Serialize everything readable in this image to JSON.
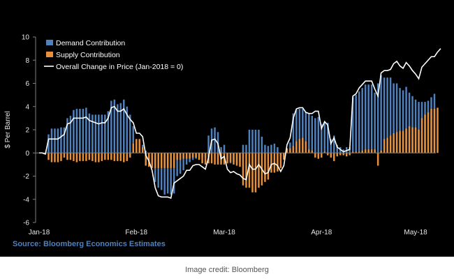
{
  "chart_data": {
    "type": "bar",
    "title": "",
    "ylabel": "$ Per Barrel",
    "xlabel": "",
    "ylim": [
      -6,
      10
    ],
    "yticks": [
      -6,
      -4,
      -2,
      0,
      2,
      4,
      6,
      8,
      10
    ],
    "x_tick_labels": [
      {
        "label": "Jan-18",
        "index": 0
      },
      {
        "label": "Feb-18",
        "index": 31
      },
      {
        "label": "Mar-18",
        "index": 59
      },
      {
        "label": "Apr-18",
        "index": 90
      },
      {
        "label": "May-18",
        "index": 120
      }
    ],
    "grid": false,
    "legend_position": "top-left",
    "legend": {
      "demand": "Demand Contribution",
      "supply": "Supply Contribution",
      "overall": "Overall Change in Price (Jan-2018 = 0)"
    },
    "series": [
      {
        "name": "Demand Contribution",
        "kind": "bar",
        "color": "#4f81bd",
        "values": [
          0,
          0,
          0,
          1.6,
          2.1,
          2.1,
          2.1,
          2.2,
          2.2,
          3.0,
          3.2,
          3.7,
          3.8,
          3.8,
          3.8,
          3.9,
          3.4,
          3.3,
          3.3,
          3.3,
          3.3,
          3.3,
          3.6,
          4.5,
          4.6,
          4.2,
          4.3,
          4.6,
          4.0,
          3.3,
          2.3,
          1.0,
          0.6,
          0.7,
          0.2,
          -1.0,
          -1.2,
          -2.5,
          -3.0,
          -3.2,
          -3.6,
          -3.5,
          -3.6,
          -3.5,
          -2.0,
          -1.8,
          -1.5,
          -1.0,
          -0.8,
          -0.6,
          -0.5,
          -0.5,
          -0.4,
          -0.4,
          1.5,
          2.1,
          2.2,
          1.8,
          0.5,
          0.7,
          -0.5,
          -0.9,
          -0.8,
          -0.9,
          -0.7,
          0.7,
          0.7,
          2.0,
          2.0,
          2.0,
          2.0,
          1.4,
          0.7,
          0.6,
          0.7,
          0.8,
          0.5,
          -0.3,
          -0.5,
          0.3,
          0.9,
          3.4,
          3.7,
          3.8,
          3.8,
          3.5,
          3.4,
          3.2,
          3.0,
          3.1,
          2.5,
          2.6,
          2.6,
          1.2,
          1.5,
          0.7,
          0.5,
          0.3,
          0.5,
          0.5,
          4.8,
          5.0,
          5.3,
          5.6,
          5.9,
          5.9,
          5.9,
          5.2,
          6.0,
          6.7,
          6.5,
          6.5,
          6.5,
          6.0,
          6.0,
          5.6,
          5.4,
          5.7,
          5.2,
          4.9,
          4.6,
          4.4,
          4.4,
          4.4,
          4.5,
          4.8,
          5.1
        ]
      },
      {
        "name": "Supply Contribution",
        "kind": "bar",
        "color": "#e8913a",
        "values": [
          0,
          0,
          0,
          -0.6,
          -0.8,
          -0.8,
          -0.8,
          -0.7,
          -0.4,
          -0.6,
          -0.6,
          -0.7,
          -0.8,
          -0.7,
          -0.7,
          -0.7,
          -0.6,
          -0.7,
          -0.8,
          -0.8,
          -0.7,
          -0.6,
          -0.6,
          -0.6,
          -0.7,
          -0.7,
          -0.7,
          -0.8,
          -0.7,
          -0.4,
          0.8,
          1.2,
          1.2,
          0.5,
          -1.1,
          -1.2,
          -1.3,
          -1.3,
          -1.3,
          -1.3,
          -1.3,
          -1.3,
          -1.3,
          -1.3,
          -0.6,
          -0.6,
          -0.5,
          -0.5,
          -0.5,
          -0.4,
          -0.4,
          -0.6,
          -0.9,
          -1.0,
          -0.9,
          -0.9,
          -1.0,
          -1.0,
          -1.0,
          -1.0,
          -0.9,
          -0.8,
          -1.0,
          -1.1,
          -1.2,
          -2.8,
          -3.0,
          -3.0,
          -3.4,
          -3.4,
          -3.0,
          -2.8,
          -2.5,
          -2.3,
          -1.7,
          -1.7,
          -1.6,
          -1.3,
          -0.6,
          0.4,
          0.4,
          0.6,
          1.0,
          1.2,
          1.3,
          1.0,
          0.3,
          0.2,
          -0.4,
          -0.5,
          -0.4,
          0.1,
          -0.2,
          -0.4,
          -0.7,
          -0.3,
          -0.2,
          -0.2,
          -0.3,
          -0.2,
          0.1,
          0.1,
          0.1,
          0.2,
          0.3,
          0.3,
          0.3,
          0.3,
          -1.1,
          0.2,
          1.2,
          1.3,
          1.5,
          1.7,
          1.8,
          1.9,
          1.9,
          2.1,
          2.3,
          2.2,
          2.2,
          2.0,
          3.0,
          3.3,
          3.5,
          3.8,
          3.8,
          3.9
        ]
      },
      {
        "name": "Overall Change in Price (Jan-2018 = 0)",
        "kind": "line",
        "color": "#ffffff",
        "values": [
          0,
          0,
          -0.1,
          1.2,
          1.2,
          1.2,
          1.2,
          1.4,
          1.6,
          2.5,
          2.6,
          3.0,
          3.0,
          3.0,
          3.0,
          3.1,
          2.8,
          2.7,
          2.6,
          2.5,
          2.6,
          2.6,
          3.0,
          3.9,
          4.0,
          3.6,
          3.6,
          3.8,
          3.3,
          2.9,
          2.6,
          1.7,
          1.7,
          1.4,
          -0.2,
          -0.7,
          -1.5,
          -3.0,
          -3.7,
          -3.8,
          -3.8,
          -3.8,
          -3.9,
          -2.6,
          -2.4,
          -2.2,
          -2.0,
          -1.5,
          -1.5,
          -1.1,
          -1.0,
          -1.0,
          -1.2,
          -1.4,
          -0.4,
          1.1,
          1.2,
          0.8,
          -0.5,
          -0.3,
          -1.4,
          -1.7,
          -1.6,
          -1.8,
          -1.9,
          -2.2,
          -2.3,
          -1.0,
          -1.4,
          -1.4,
          -1.0,
          -1.4,
          -1.8,
          -1.7,
          -1.0,
          -0.9,
          -1.1,
          -1.6,
          -1.1,
          0.7,
          1.3,
          3.0,
          3.8,
          3.9,
          3.9,
          3.5,
          3.4,
          3.4,
          3.6,
          3.6,
          2.1,
          2.7,
          2.4,
          0.8,
          1.3,
          0.5,
          0.3,
          0.1,
          0.2,
          0.3,
          4.9,
          5.1,
          5.6,
          5.9,
          6.2,
          6.2,
          6.2,
          5.5,
          4.9,
          6.9,
          7.1,
          7.1,
          7.2,
          7.7,
          7.9,
          7.5,
          7.3,
          7.8,
          7.5,
          7.1,
          6.8,
          6.4,
          7.4,
          7.7,
          8.0,
          8.3,
          8.3,
          8.7,
          9.0
        ]
      }
    ]
  },
  "source_note": "Source: Bloomberg Economics Estimates",
  "image_credit": "Image credit: Bloomberg"
}
